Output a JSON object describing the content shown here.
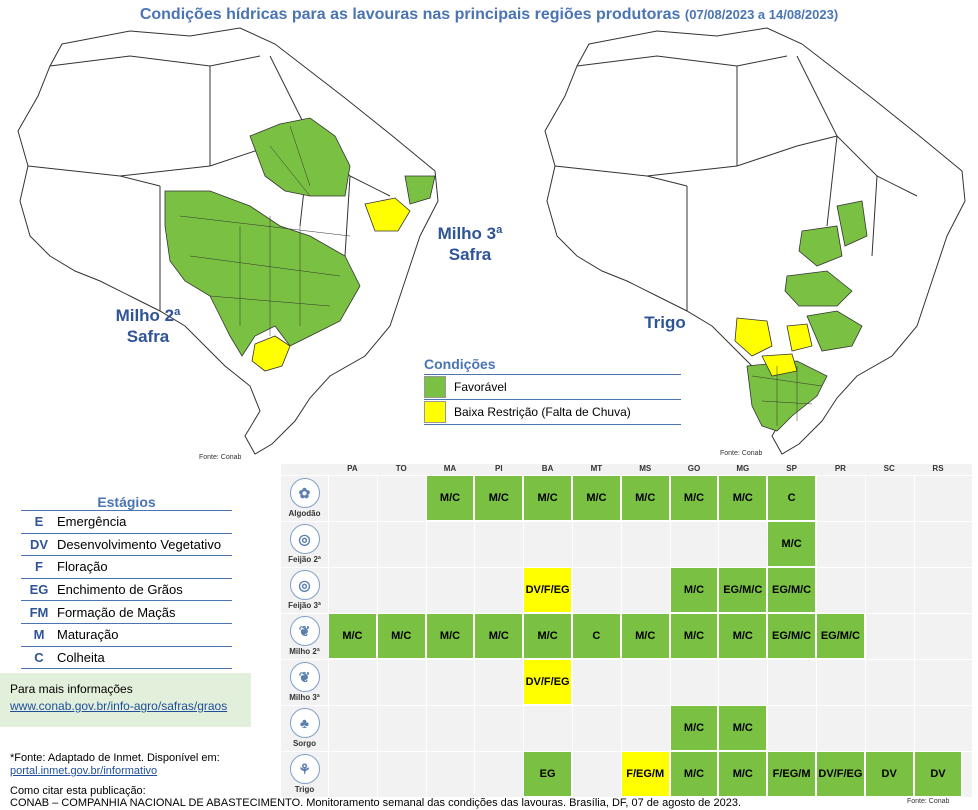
{
  "title": {
    "main": "Condições hídricas para as lavouras nas principais regiões produtoras",
    "dates": "(07/08/2023 a 14/08/2023)"
  },
  "maps": {
    "left_label_1": "Milho 2ª",
    "left_label_2": "Safra",
    "middle_label_1": "Milho 3ª",
    "middle_label_2": "Safra",
    "right_label": "Trigo",
    "fonte_left": "Fonte: Conab",
    "fonte_right": "Fonte: Conab"
  },
  "legend": {
    "title": "Condições",
    "items": [
      {
        "label": "Favorável",
        "color": "#7ac143"
      },
      {
        "label": "Baixa Restrição (Falta de Chuva)",
        "color": "#ffff00"
      }
    ]
  },
  "stages": {
    "title": "Estágios",
    "items": [
      {
        "code": "E",
        "label": "Emergência"
      },
      {
        "code": "DV",
        "label": "Desenvolvimento Vegetativo"
      },
      {
        "code": "F",
        "label": "Floração"
      },
      {
        "code": "EG",
        "label": "Enchimento de Grãos"
      },
      {
        "code": "FM",
        "label": "Formação de Maçãs"
      },
      {
        "code": "M",
        "label": "Maturação"
      },
      {
        "code": "C",
        "label": "Colheita"
      }
    ]
  },
  "info": {
    "label": "Para mais informações",
    "link": "www.conab.gov.br/info-agro/safras/graos"
  },
  "fonte_note": {
    "line1": "*Fonte: Adaptado de Inmet. Disponível em:",
    "link": "portal.inmet.gov.br/informativo"
  },
  "citation": {
    "line1": "Como citar esta publicação:",
    "line2": "CONAB – COMPANHIA NACIONAL DE ABASTECIMENTO. Monitoramento semanal das condições das lavouras. Brasília, DF, 07 de agosto de 2023."
  },
  "fonte_table": "Fonte: Conab",
  "table": {
    "states": [
      "PA",
      "TO",
      "MA",
      "PI",
      "BA",
      "MT",
      "MS",
      "GO",
      "MG",
      "SP",
      "PR",
      "SC",
      "RS"
    ],
    "crops": [
      {
        "name": "Algodão",
        "icon": "cotton-icon",
        "glyph": "✿",
        "cells": [
          null,
          null,
          {
            "t": "M/C",
            "c": "g"
          },
          {
            "t": "M/C",
            "c": "g"
          },
          {
            "t": "M/C",
            "c": "g"
          },
          {
            "t": "M/C",
            "c": "g"
          },
          {
            "t": "M/C",
            "c": "g"
          },
          {
            "t": "M/C",
            "c": "g"
          },
          {
            "t": "M/C",
            "c": "g"
          },
          {
            "t": "C",
            "c": "g"
          },
          null,
          null,
          null
        ]
      },
      {
        "name": "Feijão 2ª",
        "icon": "bean-icon",
        "glyph": "◎",
        "cells": [
          null,
          null,
          null,
          null,
          null,
          null,
          null,
          null,
          null,
          {
            "t": "M/C",
            "c": "g"
          },
          null,
          null,
          null
        ]
      },
      {
        "name": "Feijão 3ª",
        "icon": "bean-icon",
        "glyph": "◎",
        "cells": [
          null,
          null,
          null,
          null,
          {
            "t": "DV/F/EG",
            "c": "y"
          },
          null,
          null,
          {
            "t": "M/C",
            "c": "g"
          },
          {
            "t": "EG/M/C",
            "c": "g"
          },
          {
            "t": "EG/M/C",
            "c": "g"
          },
          null,
          null,
          null
        ]
      },
      {
        "name": "Milho 2ª",
        "icon": "corn-icon",
        "glyph": "❦",
        "cells": [
          {
            "t": "M/C",
            "c": "g"
          },
          {
            "t": "M/C",
            "c": "g"
          },
          {
            "t": "M/C",
            "c": "g"
          },
          {
            "t": "M/C",
            "c": "g"
          },
          {
            "t": "M/C",
            "c": "g"
          },
          {
            "t": "C",
            "c": "g"
          },
          {
            "t": "M/C",
            "c": "g"
          },
          {
            "t": "M/C",
            "c": "g"
          },
          {
            "t": "M/C",
            "c": "g"
          },
          {
            "t": "EG/M/C",
            "c": "g"
          },
          {
            "t": "EG/M/C",
            "c": "g"
          },
          null,
          null
        ]
      },
      {
        "name": "Milho 3ª",
        "icon": "corn-icon",
        "glyph": "❦",
        "cells": [
          null,
          null,
          null,
          null,
          {
            "t": "DV/F/EG",
            "c": "y"
          },
          null,
          null,
          null,
          null,
          null,
          null,
          null,
          null
        ]
      },
      {
        "name": "Sorgo",
        "icon": "sorghum-icon",
        "glyph": "♣",
        "cells": [
          null,
          null,
          null,
          null,
          null,
          null,
          null,
          {
            "t": "M/C",
            "c": "g"
          },
          {
            "t": "M/C",
            "c": "g"
          },
          null,
          null,
          null,
          null
        ]
      },
      {
        "name": "Trigo",
        "icon": "wheat-icon",
        "glyph": "⚘",
        "cells": [
          null,
          null,
          null,
          null,
          {
            "t": "EG",
            "c": "g"
          },
          null,
          {
            "t": "F/EG/M",
            "c": "y"
          },
          {
            "t": "M/C",
            "c": "g"
          },
          {
            "t": "M/C",
            "c": "g"
          },
          {
            "t": "F/EG/M",
            "c": "g"
          },
          {
            "t": "DV/F/EG",
            "c": "g"
          },
          {
            "t": "DV",
            "c": "g"
          },
          {
            "t": "DV",
            "c": "g"
          }
        ]
      }
    ]
  },
  "colors": {
    "favoravel": "#7ac143",
    "baixa_restricao": "#ffff00",
    "accent": "#4a74b4"
  }
}
